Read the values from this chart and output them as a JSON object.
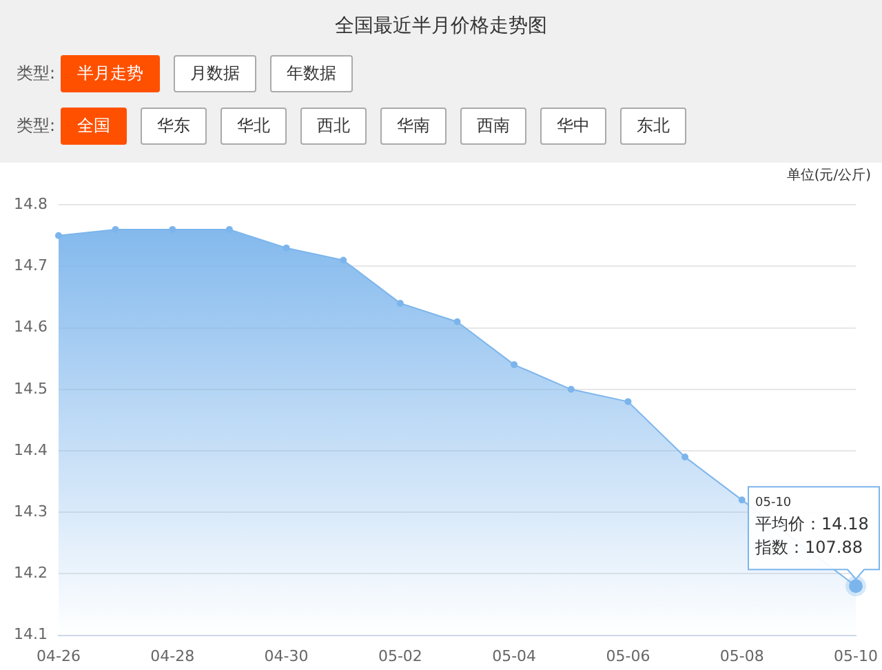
{
  "chart_data": {
    "type": "area",
    "title": "全国最近半月价格走势图",
    "ylabel": "单位(元/公斤)",
    "categories": [
      "04-26",
      null,
      "04-28",
      null,
      "04-30",
      null,
      "05-02",
      null,
      "05-04",
      null,
      "05-06",
      null,
      "05-08",
      null,
      "05-10"
    ],
    "series": [
      {
        "color": "#7cb5ec",
        "values": [
          14.75,
          14.76,
          14.76,
          14.76,
          14.73,
          14.71,
          14.64,
          14.61,
          14.54,
          14.5,
          14.48,
          14.39,
          14.32,
          null,
          14.18
        ]
      }
    ],
    "ylim": [
      14.1,
      14.8
    ],
    "yticks": [
      14.1,
      14.2,
      14.3,
      14.4,
      14.5,
      14.6,
      14.7,
      14.8
    ],
    "grid": "y",
    "legend": false,
    "marker": "circle",
    "annotations": [
      "类型:",
      "半月走势",
      "月数据",
      "年数据",
      "类型:",
      "全国",
      "华东",
      "华北",
      "西北",
      "华南",
      "西南",
      "华中",
      "东北",
      {
        "text": "05-10\n平均价：14.18\n指数：107.88",
        "x": "05-10",
        "y": 14.18
      }
    ]
  }
}
